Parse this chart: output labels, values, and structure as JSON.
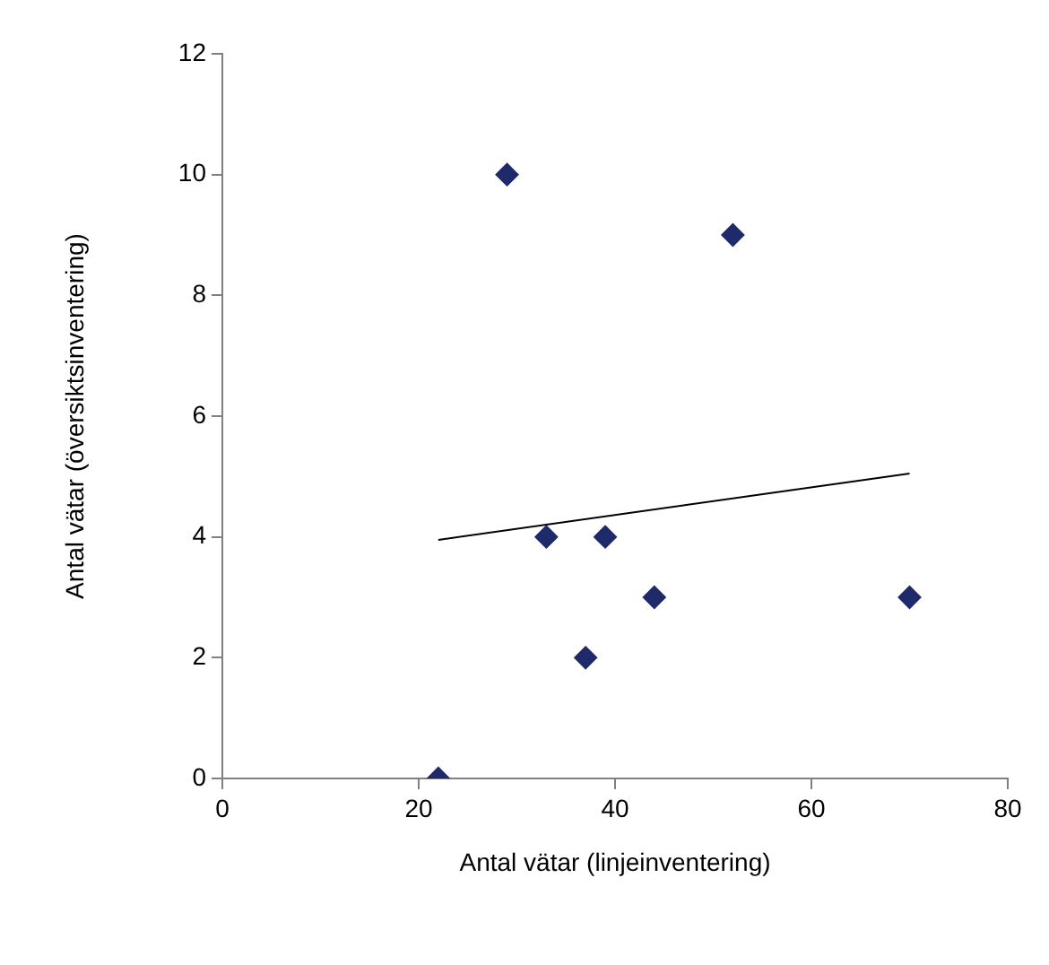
{
  "chart_data": {
    "type": "scatter",
    "xlabel": "Antal vätar (linjeinventering)",
    "ylabel": "Antal vätar (översiktsinventering)",
    "xlim": [
      0,
      80
    ],
    "ylim": [
      0,
      12
    ],
    "xticks": [
      0,
      20,
      40,
      60,
      80
    ],
    "yticks": [
      0,
      2,
      4,
      6,
      8,
      10,
      12
    ],
    "marker": "diamond",
    "series": [
      {
        "color": "#1f2a6b",
        "x": [
          22,
          29,
          33,
          37,
          39,
          44,
          52,
          70
        ],
        "values": [
          0,
          10,
          4,
          2,
          4,
          3,
          9,
          3
        ]
      },
      {
        "type": "line",
        "color": "#000000",
        "x": [
          22,
          70
        ],
        "values": [
          3.95,
          5.05
        ],
        "marker": "none"
      }
    ]
  }
}
